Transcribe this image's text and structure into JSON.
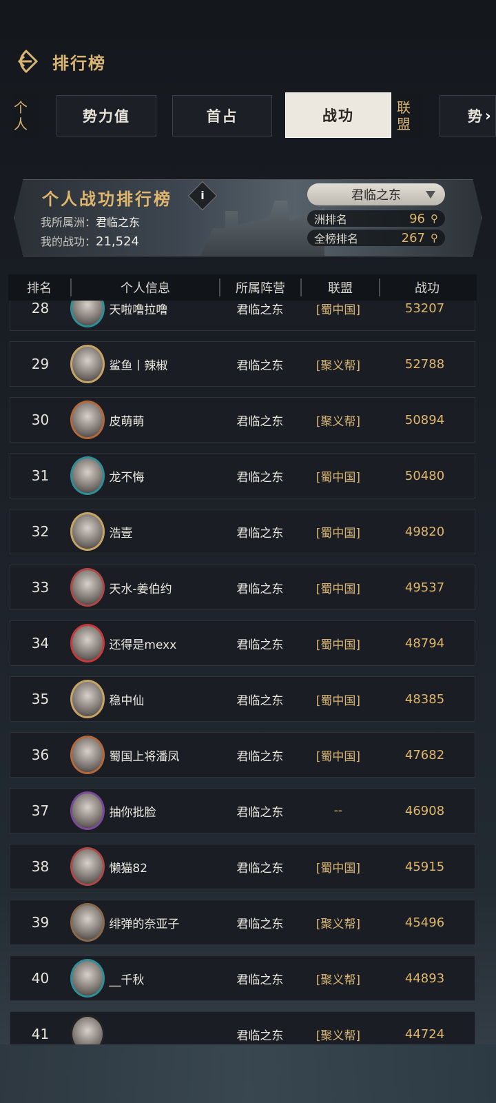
{
  "header": {
    "title": "排行榜",
    "back_icon": "back-arrow-icon"
  },
  "tabs": {
    "group_personal": "个人",
    "group_alliance": "联盟",
    "items": [
      {
        "label": "势力值"
      },
      {
        "label": "首占"
      },
      {
        "label": "战功",
        "active": true
      },
      {
        "label": "势"
      }
    ]
  },
  "banner": {
    "title": "个人战功排行榜",
    "info_label": "i",
    "region_label": "我所属洲：",
    "region_value": "君临之东",
    "merit_label": "我的战功：",
    "merit_value": "21,524",
    "selector_value": "君临之东",
    "region_rank_label": "洲排名",
    "region_rank": "96",
    "global_rank_label": "全榜排名",
    "global_rank": "267"
  },
  "table": {
    "headers": [
      "排名",
      "个人信息",
      "所属阵营",
      "联盟",
      "战功"
    ],
    "rows": [
      {
        "rank": "28",
        "name": "天啦噜拉噜",
        "camp": "君临之东",
        "alliance": "[蜀中国]",
        "score": "53207",
        "frame": "#2f8f98"
      },
      {
        "rank": "29",
        "name": "鲨鱼丨辣椒",
        "camp": "君临之东",
        "alliance": "[聚义帮]",
        "score": "52788",
        "frame": "#c8a464"
      },
      {
        "rank": "30",
        "name": "皮萌萌",
        "camp": "君临之东",
        "alliance": "[聚义帮]",
        "score": "50894",
        "frame": "#b7683a"
      },
      {
        "rank": "31",
        "name": "龙不悔",
        "camp": "君临之东",
        "alliance": "[蜀中国]",
        "score": "50480",
        "frame": "#2f8f98"
      },
      {
        "rank": "32",
        "name": "浩壹",
        "camp": "君临之东",
        "alliance": "[蜀中国]",
        "score": "49820",
        "frame": "#c8a464"
      },
      {
        "rank": "33",
        "name": "天水-姜伯约",
        "camp": "君临之东",
        "alliance": "[蜀中国]",
        "score": "49537",
        "frame": "#b04848"
      },
      {
        "rank": "34",
        "name": "还得是mexx",
        "camp": "君临之东",
        "alliance": "[蜀中国]",
        "score": "48794",
        "frame": "#c83a3a"
      },
      {
        "rank": "35",
        "name": "稳中仙",
        "camp": "君临之东",
        "alliance": "[蜀中国]",
        "score": "48385",
        "frame": "#c8a464"
      },
      {
        "rank": "36",
        "name": "蜀国上将潘凤",
        "camp": "君临之东",
        "alliance": "[蜀中国]",
        "score": "47682",
        "frame": "#b7683a"
      },
      {
        "rank": "37",
        "name": "抽你批脸",
        "camp": "君临之东",
        "alliance": "--",
        "score": "46908",
        "frame": "#7a4a9a"
      },
      {
        "rank": "38",
        "name": "懒猫82",
        "camp": "君临之东",
        "alliance": "[蜀中国]",
        "score": "45915",
        "frame": "#b04848"
      },
      {
        "rank": "39",
        "name": "绯弹的奈亚子",
        "camp": "君临之东",
        "alliance": "[聚义帮]",
        "score": "45496",
        "frame": "#8a6a4a"
      },
      {
        "rank": "40",
        "name": "__千秋",
        "camp": "君临之东",
        "alliance": "[聚义帮]",
        "score": "44893",
        "frame": "#2f8f98"
      },
      {
        "rank": "41",
        "name": "",
        "camp": "君临之东",
        "alliance": "[聚义帮]",
        "score": "44724",
        "frame": "#222222"
      }
    ]
  }
}
